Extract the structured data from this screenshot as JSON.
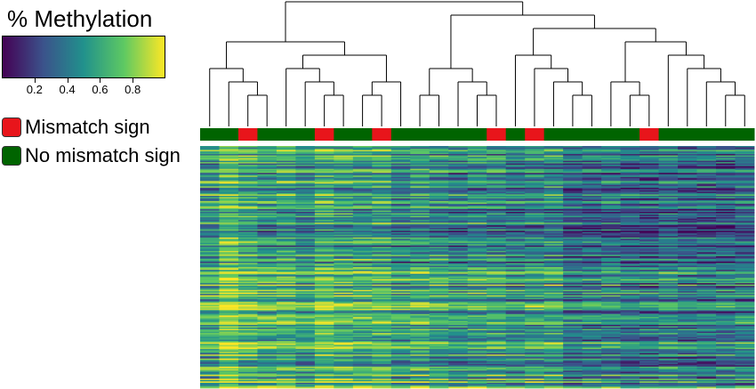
{
  "chart_data": {
    "type": "heatmap",
    "legend_title": "% Methylation",
    "colorscale": [
      "#440154",
      "#3b528b",
      "#21918c",
      "#5ec962",
      "#fde725"
    ],
    "colorbar_range": [
      0.0,
      1.0
    ],
    "colorbar_ticks": [
      "0.2",
      "0.4",
      "0.6",
      "0.8"
    ],
    "categories": [
      {
        "label": "Mismatch sign",
        "color": "#e8151b"
      },
      {
        "label": "No mismatch sign",
        "color": "#006400"
      }
    ],
    "sample_groups": [
      1,
      1,
      0,
      1,
      1,
      1,
      0,
      1,
      1,
      0,
      1,
      1,
      1,
      1,
      1,
      0,
      1,
      0,
      1,
      1,
      1,
      1,
      1,
      0,
      1,
      1,
      1,
      1,
      1
    ],
    "column_mean_methylation": [
      0.55,
      0.75,
      0.62,
      0.58,
      0.6,
      0.52,
      0.65,
      0.6,
      0.58,
      0.6,
      0.5,
      0.55,
      0.5,
      0.45,
      0.5,
      0.5,
      0.45,
      0.48,
      0.5,
      0.35,
      0.38,
      0.4,
      0.35,
      0.35,
      0.4,
      0.35,
      0.35,
      0.35,
      0.38
    ],
    "row_count": 180,
    "dendrogram": "hierarchical clustering of 29 samples"
  }
}
